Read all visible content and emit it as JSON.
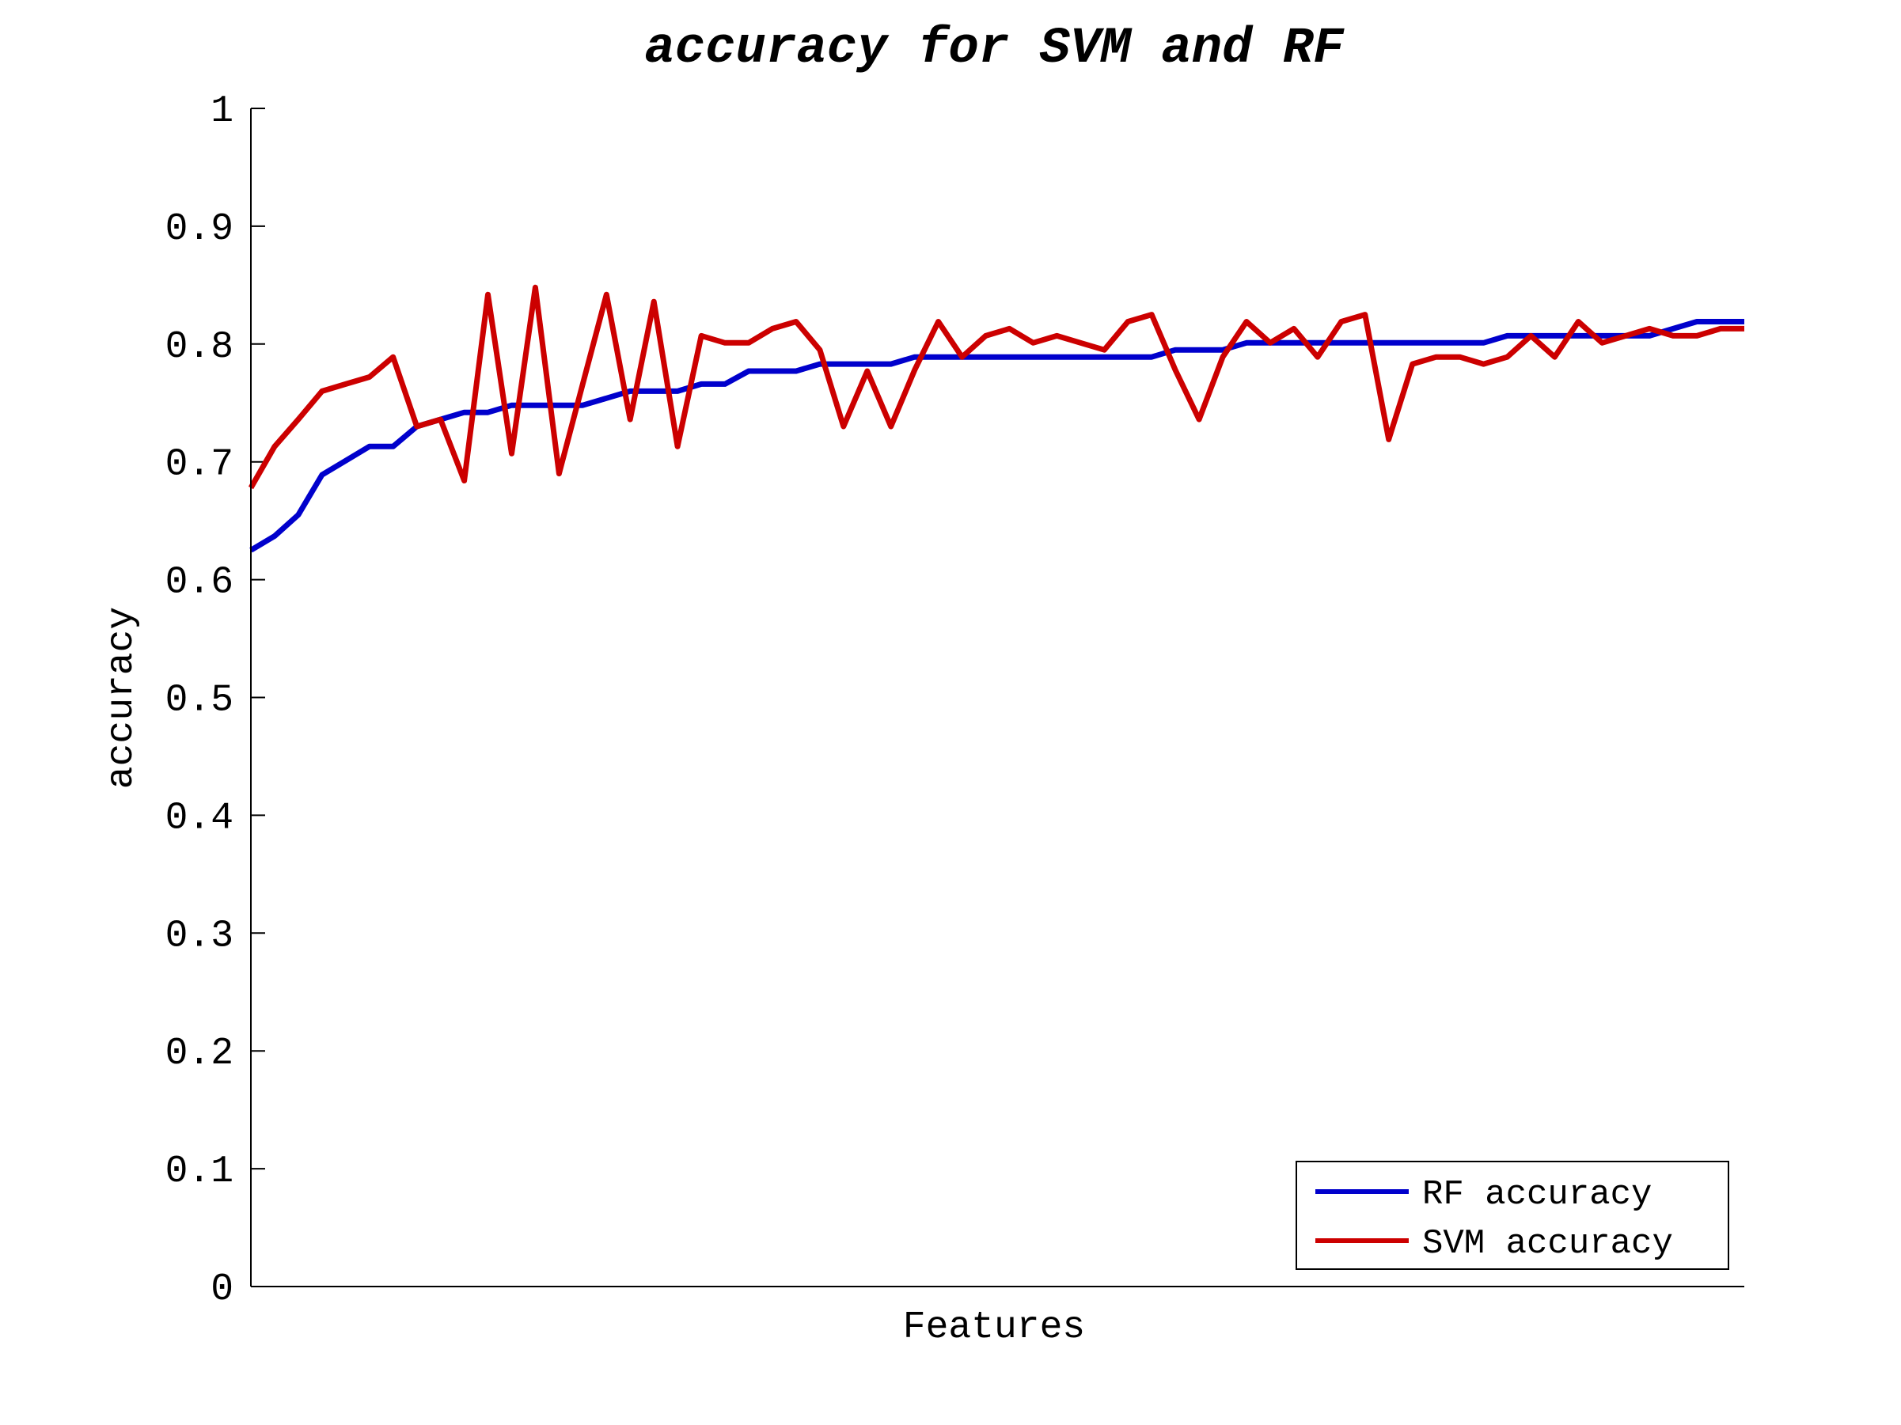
{
  "chart_data": {
    "type": "line",
    "title": "accuracy for SVM and RF",
    "xlabel": "Features",
    "ylabel": "accuracy",
    "ylim": [
      0,
      1
    ],
    "yticks": [
      "0",
      "0.1",
      "0.2",
      "0.3",
      "0.4",
      "0.5",
      "0.6",
      "0.7",
      "0.8",
      "0.9",
      "1"
    ],
    "xticks_visible": false,
    "grid": false,
    "legend_position": "bottom-right",
    "x": [
      1,
      2,
      3,
      4,
      5,
      6,
      7,
      8,
      9,
      10,
      11,
      12,
      13,
      14,
      15,
      16,
      17,
      18,
      19,
      20,
      21,
      22,
      23,
      24,
      25,
      26,
      27,
      28,
      29,
      30,
      31,
      32,
      33,
      34,
      35,
      36,
      37,
      38,
      39,
      40,
      41,
      42,
      43,
      44,
      45,
      46,
      47,
      48,
      49,
      50,
      51,
      52,
      53,
      54,
      55,
      56,
      57,
      58,
      59,
      60,
      61,
      62,
      63,
      64
    ],
    "series": [
      {
        "name": "RF accuracy",
        "color": "#0000cc",
        "values": [
          0.625,
          0.637,
          0.655,
          0.689,
          0.701,
          0.713,
          0.713,
          0.73,
          0.736,
          0.742,
          0.742,
          0.748,
          0.748,
          0.748,
          0.748,
          0.754,
          0.76,
          0.76,
          0.76,
          0.766,
          0.766,
          0.777,
          0.777,
          0.777,
          0.783,
          0.783,
          0.783,
          0.783,
          0.789,
          0.789,
          0.789,
          0.789,
          0.789,
          0.789,
          0.789,
          0.789,
          0.789,
          0.789,
          0.789,
          0.795,
          0.795,
          0.795,
          0.801,
          0.801,
          0.801,
          0.801,
          0.801,
          0.801,
          0.801,
          0.801,
          0.801,
          0.801,
          0.801,
          0.807,
          0.807,
          0.807,
          0.807,
          0.807,
          0.807,
          0.807,
          0.813,
          0.819,
          0.819,
          0.819
        ]
      },
      {
        "name": "SVM accuracy",
        "color": "#cc0000",
        "values": [
          0.678,
          0.713,
          0.736,
          0.76,
          0.766,
          0.772,
          0.789,
          0.73,
          0.736,
          0.684,
          0.842,
          0.707,
          0.848,
          0.69,
          0.766,
          0.842,
          0.736,
          0.836,
          0.713,
          0.807,
          0.801,
          0.801,
          0.813,
          0.819,
          0.795,
          0.73,
          0.777,
          0.73,
          0.778,
          0.819,
          0.789,
          0.807,
          0.813,
          0.801,
          0.807,
          0.801,
          0.795,
          0.819,
          0.825,
          0.778,
          0.736,
          0.789,
          0.819,
          0.801,
          0.813,
          0.789,
          0.819,
          0.825,
          0.719,
          0.783,
          0.789,
          0.789,
          0.783,
          0.789,
          0.807,
          0.789,
          0.819,
          0.801,
          0.807,
          0.813,
          0.807,
          0.807,
          0.813,
          0.813
        ]
      }
    ]
  }
}
